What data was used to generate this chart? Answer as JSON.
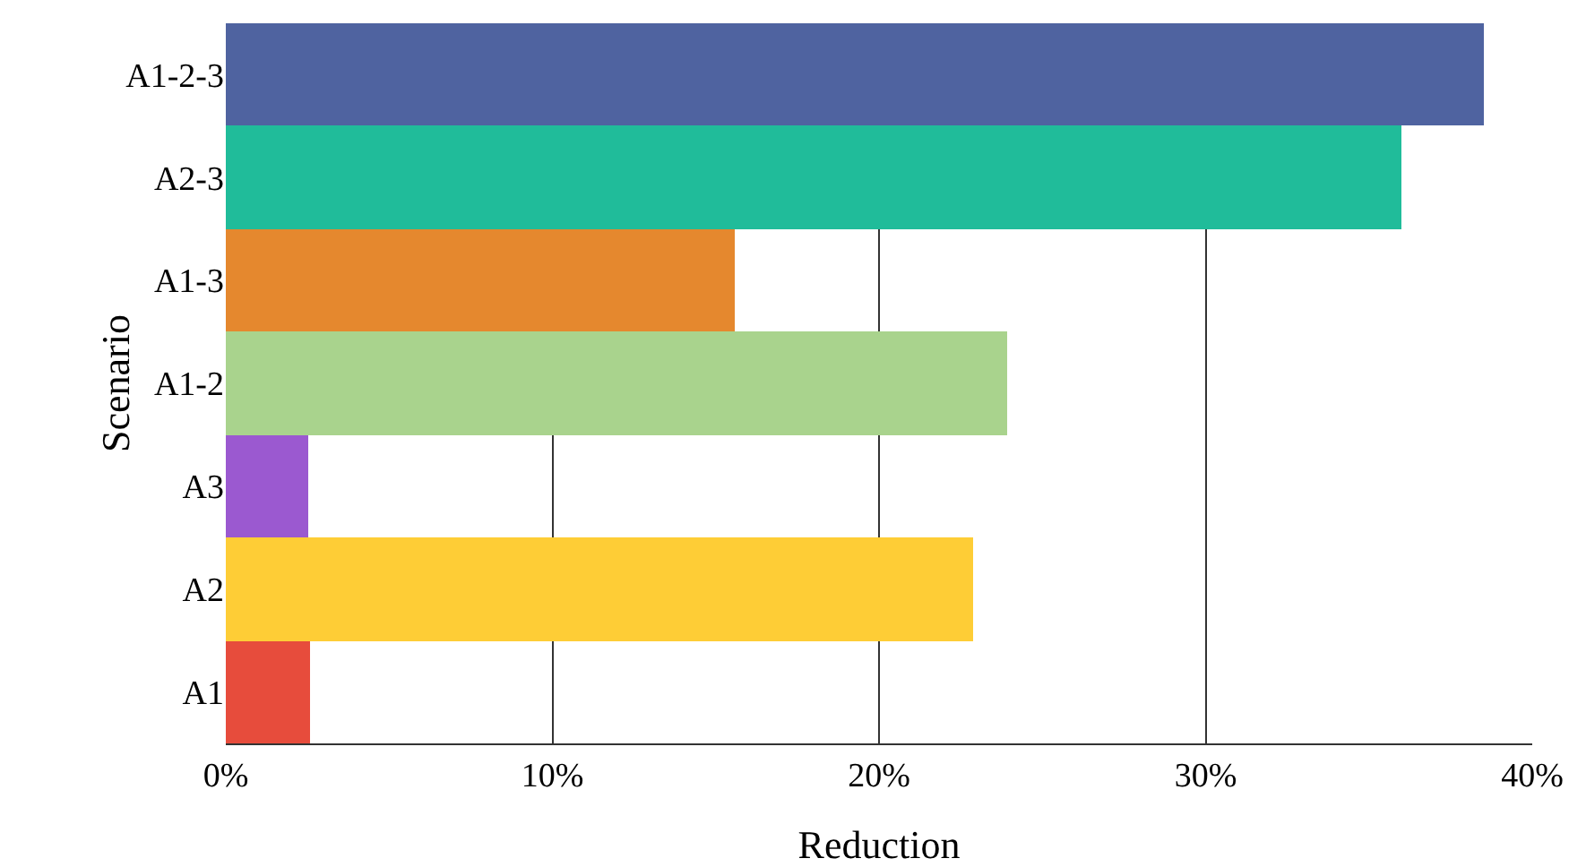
{
  "chart_data": {
    "type": "bar",
    "orientation": "horizontal",
    "xlabel": "Reduction",
    "ylabel": "Scenario",
    "categories": [
      "A1-2-3",
      "A2-3",
      "A1-3",
      "A1-2",
      "A3",
      "A2",
      "A1"
    ],
    "values": [
      38.5,
      36.0,
      15.6,
      23.9,
      2.5,
      22.9,
      2.6
    ],
    "colors": [
      "#4f63a0",
      "#20bc9a",
      "#e5882e",
      "#a9d38d",
      "#9b59d0",
      "#fecd36",
      "#e74c3c"
    ],
    "xlim": [
      0,
      40
    ],
    "xticks": [
      {
        "value": 0,
        "label": "0%"
      },
      {
        "value": 10,
        "label": "10%"
      },
      {
        "value": 20,
        "label": "20%"
      },
      {
        "value": 30,
        "label": "30%"
      },
      {
        "value": 40,
        "label": "40%"
      }
    ],
    "grid": "x",
    "legend": false
  }
}
